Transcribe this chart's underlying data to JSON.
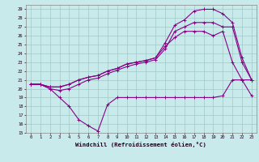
{
  "xlabel": "Windchill (Refroidissement éolien,°C)",
  "background_color": "#c8eaea",
  "grid_color": "#a0c8c8",
  "line_color": "#880088",
  "xlim": [
    -0.5,
    23.5
  ],
  "ylim": [
    15,
    29.5
  ],
  "xticks": [
    0,
    1,
    2,
    3,
    4,
    5,
    6,
    7,
    8,
    9,
    10,
    11,
    12,
    13,
    14,
    15,
    16,
    17,
    18,
    19,
    20,
    21,
    22,
    23
  ],
  "yticks": [
    15,
    16,
    17,
    18,
    19,
    20,
    21,
    22,
    23,
    24,
    25,
    26,
    27,
    28,
    29
  ],
  "series1_x": [
    0,
    1,
    2,
    3,
    4,
    5,
    6,
    7,
    8,
    9,
    10,
    11,
    12,
    13,
    14,
    15,
    16,
    17,
    18,
    19,
    20,
    21,
    22,
    23
  ],
  "series1_y": [
    20.5,
    20.5,
    20.0,
    19.0,
    18.0,
    16.5,
    15.8,
    15.2,
    18.2,
    19.0,
    19.0,
    19.0,
    19.0,
    19.0,
    19.0,
    19.0,
    19.0,
    19.0,
    19.0,
    19.0,
    19.2,
    21.0,
    21.0,
    19.2
  ],
  "series2_x": [
    0,
    1,
    2,
    3,
    4,
    5,
    6,
    7,
    8,
    9,
    10,
    11,
    12,
    13,
    14,
    15,
    16,
    17,
    18,
    19,
    20,
    21,
    22,
    23
  ],
  "series2_y": [
    20.5,
    20.5,
    20.2,
    20.2,
    20.5,
    21.0,
    21.3,
    21.5,
    22.0,
    22.3,
    22.8,
    23.0,
    23.2,
    23.5,
    24.8,
    25.8,
    26.5,
    26.5,
    26.5,
    26.0,
    26.5,
    23.0,
    21.0,
    21.0
  ],
  "series3_x": [
    0,
    1,
    2,
    3,
    4,
    5,
    6,
    7,
    8,
    9,
    10,
    11,
    12,
    13,
    14,
    15,
    16,
    17,
    18,
    19,
    20,
    21,
    22,
    23
  ],
  "series3_y": [
    20.5,
    20.5,
    20.2,
    20.2,
    20.5,
    21.0,
    21.3,
    21.5,
    22.0,
    22.3,
    22.8,
    23.0,
    23.2,
    23.5,
    25.2,
    27.2,
    27.8,
    28.8,
    29.0,
    29.0,
    28.5,
    27.5,
    23.5,
    21.0
  ],
  "series4_x": [
    0,
    1,
    2,
    3,
    4,
    5,
    6,
    7,
    8,
    9,
    10,
    11,
    12,
    13,
    14,
    15,
    16,
    17,
    18,
    19,
    20,
    21,
    22,
    23
  ],
  "series4_y": [
    20.5,
    20.5,
    20.0,
    19.8,
    20.0,
    20.5,
    21.0,
    21.2,
    21.7,
    22.1,
    22.5,
    22.8,
    23.0,
    23.3,
    24.5,
    26.5,
    27.0,
    27.5,
    27.5,
    27.5,
    27.0,
    27.0,
    23.0,
    21.0
  ]
}
